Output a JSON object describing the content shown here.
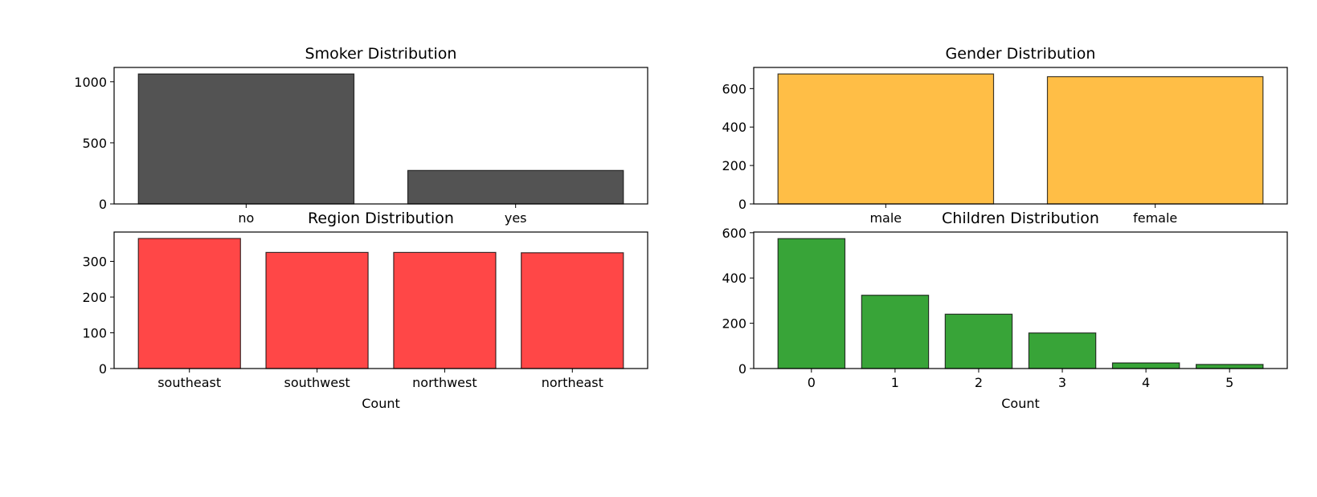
{
  "chart_data": [
    {
      "type": "bar",
      "title": "Smoker Distribution",
      "xlabel": "",
      "ylabel": "",
      "categories": [
        "no",
        "yes"
      ],
      "values": [
        1064,
        274
      ],
      "ylim": [
        0,
        1117
      ],
      "yticks": [
        0,
        500,
        1000
      ],
      "color": "#404040",
      "legend": "none"
    },
    {
      "type": "bar",
      "title": "Gender Distribution",
      "xlabel": "",
      "ylabel": "",
      "categories": [
        "male",
        "female"
      ],
      "values": [
        676,
        662
      ],
      "ylim": [
        0,
        710
      ],
      "yticks": [
        0,
        200,
        400,
        600
      ],
      "color": "#FFB732",
      "legend": "none"
    },
    {
      "type": "bar",
      "title": "Region Distribution",
      "xlabel": "Count",
      "ylabel": "",
      "categories": [
        "southeast",
        "southwest",
        "northwest",
        "northeast"
      ],
      "values": [
        364,
        325,
        325,
        324
      ],
      "ylim": [
        0,
        382
      ],
      "yticks": [
        0,
        100,
        200,
        300
      ],
      "color": "#FF3333",
      "legend": "none"
    },
    {
      "type": "bar",
      "title": "Children Distribution",
      "xlabel": "Count",
      "ylabel": "",
      "categories": [
        "0",
        "1",
        "2",
        "3",
        "4",
        "5"
      ],
      "values": [
        574,
        324,
        240,
        157,
        25,
        18
      ],
      "ylim": [
        0,
        603
      ],
      "yticks": [
        0,
        200,
        400,
        600
      ],
      "color": "#229A22",
      "legend": "none"
    }
  ]
}
